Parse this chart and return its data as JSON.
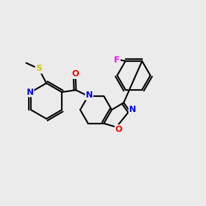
{
  "background_color": "#ebebeb",
  "bond_color": "#000000",
  "atom_colors": {
    "N": "#0000ff",
    "O": "#ff0000",
    "S": "#cccc00",
    "F": "#ff00ff",
    "C": "#000000"
  },
  "line_width": 1.6,
  "figsize": [
    3.0,
    3.0
  ],
  "dpi": 100
}
